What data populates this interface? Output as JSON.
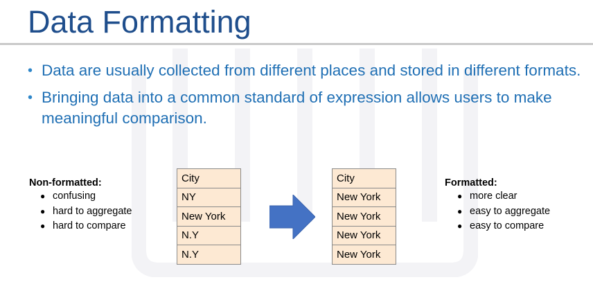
{
  "slide": {
    "title": "Data Formatting",
    "bullets": [
      "Data are usually collected from different places and stored in different formats.",
      "Bringing data into a common standard of expression allows users to make meaningful comparison."
    ]
  },
  "left_panel": {
    "heading": "Non-formatted:",
    "points": [
      "confusing",
      "hard to aggregate",
      "hard to compare"
    ]
  },
  "right_panel": {
    "heading": "Formatted:",
    "points": [
      "more clear",
      "easy to aggregate",
      "easy to compare"
    ]
  },
  "table_before": {
    "rows": [
      "City",
      "NY",
      "New York",
      "N.Y",
      "N.Y"
    ]
  },
  "table_after": {
    "rows": [
      "City",
      "New York",
      "New York",
      "New York",
      "New York"
    ]
  },
  "colors": {
    "title": "#1f4e8c",
    "bullet_text": "#1f6fb4",
    "table_fill": "#fde9d3",
    "arrow": "#4472c4"
  },
  "icons": {
    "transform_arrow": "right-arrow-icon"
  }
}
